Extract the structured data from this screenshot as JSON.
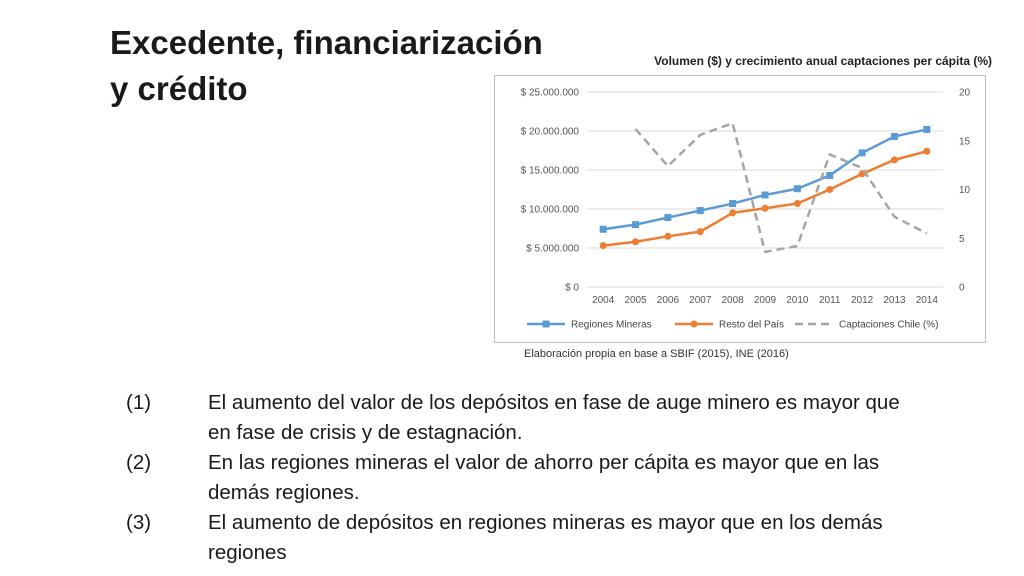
{
  "title": "Excedente, financiarización y crédito",
  "chart_caption": "Volumen ($) y crecimiento anual captaciones per cápita (%)",
  "source_note": "Elaboración propia en base a SBIF (2015), INE (2016)",
  "points": [
    {
      "num": "(1)",
      "text": "El aumento del valor de los depósitos en fase de auge minero es mayor que en fase de crisis y de estagnación."
    },
    {
      "num": "(2)",
      "text": "En las regiones mineras el valor de ahorro per cápita es mayor que en las demás regiones."
    },
    {
      "num": "(3)",
      "text": "El aumento de depósitos en regiones mineras es mayor que en los demás regiones"
    }
  ],
  "chart_data": {
    "type": "line",
    "title": "Volumen ($) y crecimiento anual captaciones per cápita (%)",
    "categories": [
      "2004",
      "2005",
      "2006",
      "2007",
      "2008",
      "2009",
      "2010",
      "2011",
      "2012",
      "2013",
      "2014"
    ],
    "y_left": {
      "min": 0,
      "max": 25000000,
      "ticks": [
        "$ 0",
        "$ 5.000.000",
        "$ 10.000.000",
        "$ 15.000.000",
        "$ 20.000.000",
        "$ 25.000.000"
      ],
      "values": [
        0,
        5000000,
        10000000,
        15000000,
        20000000,
        25000000
      ]
    },
    "y_right": {
      "min": 0,
      "max": 20,
      "ticks": [
        "0",
        "5",
        "10",
        "15",
        "20"
      ],
      "values": [
        0,
        5,
        10,
        15,
        20
      ]
    },
    "grid": true,
    "legend_position": "bottom",
    "series": [
      {
        "name": "Regiones Mineras",
        "axis": "left",
        "style": "solid",
        "marker": "square",
        "color": "#5b9bd5",
        "values": [
          7400000,
          8000000,
          8900000,
          9800000,
          10700000,
          11800000,
          12600000,
          14300000,
          17200000,
          19300000,
          20200000
        ]
      },
      {
        "name": "Resto del País",
        "axis": "left",
        "style": "solid",
        "marker": "circle",
        "color": "#ed7d31",
        "values": [
          5300000,
          5800000,
          6500000,
          7100000,
          9500000,
          10100000,
          10700000,
          12500000,
          14500000,
          16300000,
          17400000
        ]
      },
      {
        "name": "Captaciones Chile (%)",
        "axis": "right",
        "style": "dashed",
        "marker": "none",
        "color": "#a5a5a5",
        "values": [
          null,
          16.2,
          12.4,
          15.6,
          16.8,
          3.6,
          4.2,
          13.6,
          12.2,
          7.2,
          5.5
        ]
      }
    ]
  }
}
